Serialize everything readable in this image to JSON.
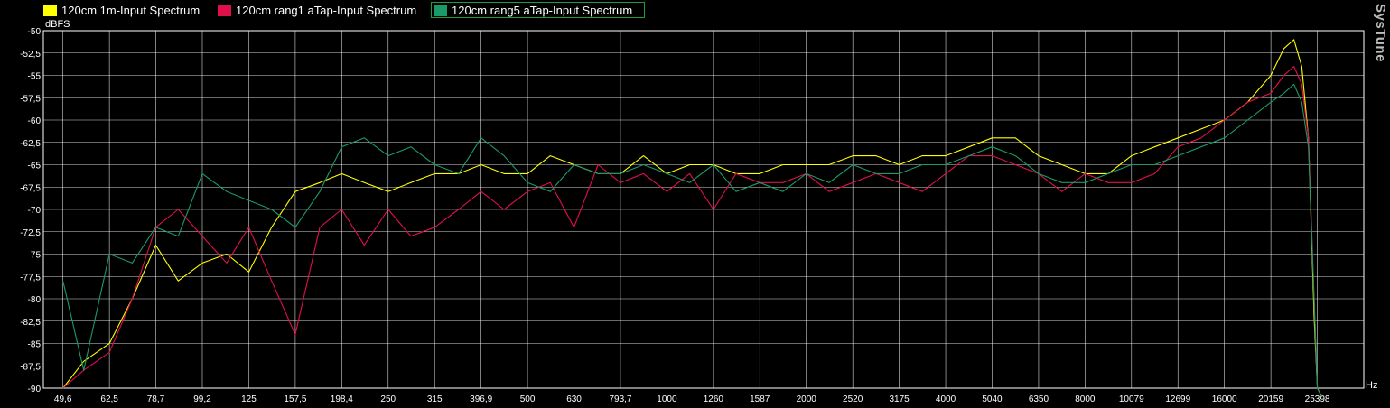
{
  "brand": "SysTune",
  "legend": [
    {
      "label": "120cm 1m-Input Spectrum",
      "color": "#ffff00"
    },
    {
      "label": "120cm rang1 aTap-Input Spectrum",
      "color": "#e0104a"
    },
    {
      "label": "120cm rang5 aTap-Input Spectrum",
      "color": "#1a9a6a"
    }
  ],
  "chart_data": {
    "type": "line",
    "ylabel": "dBFS",
    "xlabel": "Hz",
    "xscale": "log",
    "ylim": [
      -90,
      -50
    ],
    "xlim": [
      45,
      32000
    ],
    "grid": true,
    "yticks": [
      "-50",
      "-52,5",
      "-55",
      "-57,5",
      "-60",
      "-62,5",
      "-65",
      "-67,5",
      "-70",
      "-72,5",
      "-75",
      "-77,5",
      "-80",
      "-82,5",
      "-85",
      "-87,5",
      "-90"
    ],
    "xticks": [
      "49,6",
      "62,5",
      "78,7",
      "99,2",
      "125",
      "157,5",
      "198,4",
      "250",
      "315",
      "396,9",
      "500",
      "630",
      "793,7",
      "1000",
      "1260",
      "1587",
      "2000",
      "2520",
      "3175",
      "4000",
      "5040",
      "6350",
      "8000",
      "10079",
      "12699",
      "16000",
      "20159",
      "25398"
    ],
    "series": [
      {
        "name": "120cm 1m-Input Spectrum",
        "color": "#ffff00",
        "x": [
          49.6,
          55,
          62.5,
          70,
          78.7,
          88,
          99.2,
          112,
          125,
          140,
          157.5,
          178,
          198.4,
          222,
          250,
          280,
          315,
          355,
          396.9,
          445,
          500,
          560,
          630,
          710,
          793.7,
          890,
          1000,
          1120,
          1260,
          1410,
          1587,
          1780,
          2000,
          2240,
          2520,
          2830,
          3175,
          3560,
          4000,
          4490,
          5040,
          5660,
          6350,
          7130,
          8000,
          8980,
          10079,
          11310,
          12699,
          14250,
          16000,
          17960,
          20159,
          21500,
          22600,
          23500,
          24300,
          25000,
          25398,
          26000
        ],
        "y": [
          -90,
          -87,
          -85,
          -80,
          -74,
          -78,
          -76,
          -75,
          -77,
          -72,
          -68,
          -67,
          -66,
          -67,
          -68,
          -67,
          -66,
          -66,
          -65,
          -66,
          -66,
          -64,
          -65,
          -66,
          -66,
          -64,
          -66,
          -65,
          -65,
          -66,
          -66,
          -65,
          -65,
          -65,
          -64,
          -64,
          -65,
          -64,
          -64,
          -63,
          -62,
          -62,
          -64,
          -65,
          -66,
          -66,
          -64,
          -63,
          -62,
          -61,
          -60,
          -58,
          -55,
          -52,
          -51,
          -54,
          -62,
          -82,
          -90,
          -91
        ]
      },
      {
        "name": "120cm rang1 aTap-Input Spectrum",
        "color": "#e0104a",
        "x": [
          49.6,
          55,
          62.5,
          70,
          78.7,
          88,
          99.2,
          112,
          125,
          140,
          157.5,
          178,
          198.4,
          222,
          250,
          280,
          315,
          355,
          396.9,
          445,
          500,
          560,
          630,
          710,
          793.7,
          890,
          1000,
          1120,
          1260,
          1410,
          1587,
          1780,
          2000,
          2240,
          2520,
          2830,
          3175,
          3560,
          4000,
          4490,
          5040,
          5660,
          6350,
          7130,
          8000,
          8980,
          10079,
          11310,
          12699,
          14250,
          16000,
          17960,
          20159,
          21500,
          22600,
          23500,
          24300,
          25000,
          25398,
          26000
        ],
        "y": [
          -90,
          -88,
          -86,
          -80,
          -72,
          -70,
          -73,
          -76,
          -72,
          -78,
          -84,
          -72,
          -70,
          -74,
          -70,
          -73,
          -72,
          -70,
          -68,
          -70,
          -68,
          -67,
          -72,
          -65,
          -67,
          -66,
          -68,
          -66,
          -70,
          -66,
          -67,
          -67,
          -66,
          -68,
          -67,
          -66,
          -67,
          -68,
          -66,
          -64,
          -64,
          -65,
          -66,
          -68,
          -66,
          -67,
          -67,
          -66,
          -63,
          -62,
          -60,
          -58,
          -57,
          -55,
          -54,
          -56,
          -62,
          -80,
          -90,
          -91
        ]
      },
      {
        "name": "120cm rang5 aTap-Input Spectrum",
        "color": "#1a9a6a",
        "x": [
          49.6,
          55,
          62.5,
          70,
          78.7,
          88,
          99.2,
          112,
          125,
          140,
          157.5,
          178,
          198.4,
          222,
          250,
          280,
          315,
          355,
          396.9,
          445,
          500,
          560,
          630,
          710,
          793.7,
          890,
          1000,
          1120,
          1260,
          1410,
          1587,
          1780,
          2000,
          2240,
          2520,
          2830,
          3175,
          3560,
          4000,
          4490,
          5040,
          5660,
          6350,
          7130,
          8000,
          8980,
          10079,
          11310,
          12699,
          14250,
          16000,
          17960,
          20159,
          21500,
          22600,
          23500,
          24300,
          25000,
          25398,
          26000
        ],
        "y": [
          -78,
          -88,
          -75,
          -76,
          -72,
          -73,
          -66,
          -68,
          -69,
          -70,
          -72,
          -68,
          -63,
          -62,
          -64,
          -63,
          -65,
          -66,
          -62,
          -64,
          -67,
          -68,
          -65,
          -66,
          -66,
          -65,
          -66,
          -67,
          -65,
          -68,
          -67,
          -68,
          -66,
          -67,
          -65,
          -66,
          -66,
          -65,
          -65,
          -64,
          -63,
          -64,
          -66,
          -67,
          -67,
          -66,
          -65,
          -65,
          -64,
          -63,
          -62,
          -60,
          -58,
          -57,
          -56,
          -58,
          -63,
          -80,
          -90,
          -91
        ]
      }
    ]
  }
}
